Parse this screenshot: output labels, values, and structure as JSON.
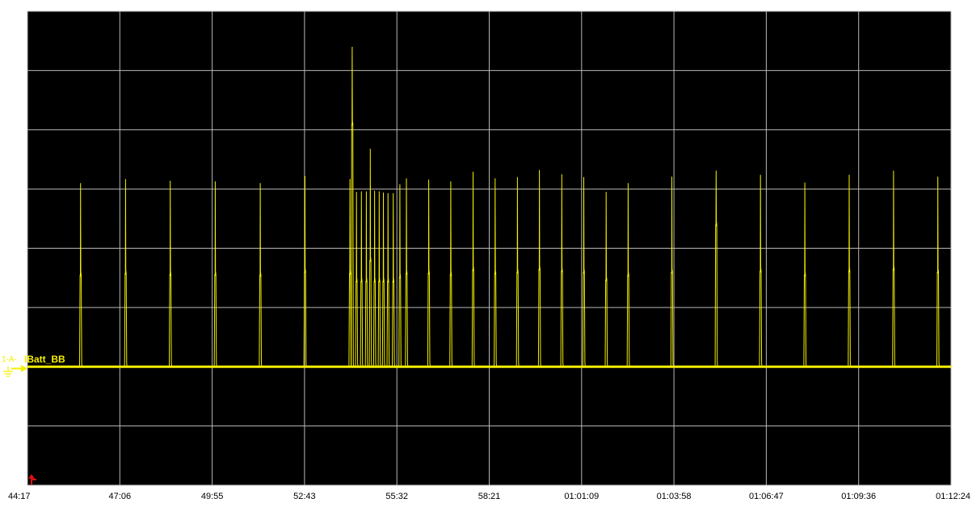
{
  "window": {
    "plot_background": "#000000",
    "grid_color": "#b8b8b8",
    "trace_color": "#f5f000",
    "marker_color": "#e01010"
  },
  "channel": {
    "prefix": "1-A-",
    "name": "IBatt_BB",
    "icons": [
      "ground-marker-icon",
      "channel-arrow-icon",
      "trigger-marker-icon"
    ]
  },
  "chart_data": {
    "type": "line",
    "title": "",
    "xlabel": "",
    "ylabel": "",
    "grid": true,
    "x_tick_labels": [
      "44:17",
      "47:06",
      "49:55",
      "52:43",
      "55:32",
      "58:21",
      "01:01:09",
      "01:03:58",
      "01:06:47",
      "01:09:36",
      "01:12:24"
    ],
    "xlim_minutes": [
      44.283,
      72.4
    ],
    "y_scale": "relative to baseline; grid divisions",
    "ylim_div": [
      -2,
      6
    ],
    "series": [
      {
        "baseline_div": 0,
        "spikes": [
          {
            "t": 45.9,
            "peak_div": 3.1,
            "mid_div": 1.55
          },
          {
            "t": 47.27,
            "peak_div": 3.17,
            "mid_div": 1.58
          },
          {
            "t": 48.63,
            "peak_div": 3.14,
            "mid_div": 1.56
          },
          {
            "t": 50.0,
            "peak_div": 3.13,
            "mid_div": 1.56
          },
          {
            "t": 51.37,
            "peak_div": 3.1,
            "mid_div": 1.55
          },
          {
            "t": 52.73,
            "peak_div": 3.22,
            "mid_div": 1.61
          },
          {
            "t": 54.1,
            "peak_div": 3.17,
            "mid_div": 1.58
          },
          {
            "t": 54.17,
            "peak_div": 5.4,
            "mid_div": 4.1
          },
          {
            "t": 54.3,
            "peak_div": 2.95,
            "mid_div": 1.45
          },
          {
            "t": 54.45,
            "peak_div": 2.96,
            "mid_div": 1.45
          },
          {
            "t": 54.6,
            "peak_div": 2.96,
            "mid_div": 1.45
          },
          {
            "t": 54.72,
            "peak_div": 3.68,
            "mid_div": 1.8
          },
          {
            "t": 54.85,
            "peak_div": 2.97,
            "mid_div": 1.45
          },
          {
            "t": 54.99,
            "peak_div": 2.96,
            "mid_div": 1.45
          },
          {
            "t": 55.12,
            "peak_div": 2.94,
            "mid_div": 1.45
          },
          {
            "t": 55.26,
            "peak_div": 2.93,
            "mid_div": 1.45
          },
          {
            "t": 55.42,
            "peak_div": 2.93,
            "mid_div": 1.45
          },
          {
            "t": 55.62,
            "peak_div": 3.08,
            "mid_div": 1.52
          },
          {
            "t": 55.82,
            "peak_div": 3.18,
            "mid_div": 1.58
          },
          {
            "t": 56.5,
            "peak_div": 3.16,
            "mid_div": 1.58
          },
          {
            "t": 57.17,
            "peak_div": 3.13,
            "mid_div": 1.56
          },
          {
            "t": 57.85,
            "peak_div": 3.29,
            "mid_div": 1.64
          },
          {
            "t": 58.52,
            "peak_div": 3.18,
            "mid_div": 1.58
          },
          {
            "t": 59.2,
            "peak_div": 3.2,
            "mid_div": 1.6
          },
          {
            "t": 59.87,
            "peak_div": 3.32,
            "mid_div": 1.65
          },
          {
            "t": 60.55,
            "peak_div": 3.25,
            "mid_div": 1.62
          },
          {
            "t": 61.22,
            "peak_div": 3.2,
            "mid_div": 1.6
          },
          {
            "t": 61.9,
            "peak_div": 2.95,
            "mid_div": 1.47
          },
          {
            "t": 62.57,
            "peak_div": 3.1,
            "mid_div": 1.55
          },
          {
            "t": 63.9,
            "peak_div": 3.21,
            "mid_div": 1.6
          },
          {
            "t": 65.25,
            "peak_div": 3.31,
            "mid_div": 2.4
          },
          {
            "t": 66.6,
            "peak_div": 3.24,
            "mid_div": 1.62
          },
          {
            "t": 67.95,
            "peak_div": 3.11,
            "mid_div": 1.55
          },
          {
            "t": 69.3,
            "peak_div": 3.24,
            "mid_div": 1.62
          },
          {
            "t": 70.65,
            "peak_div": 3.31,
            "mid_div": 1.65
          },
          {
            "t": 72.0,
            "peak_div": 3.21,
            "mid_div": 1.6
          }
        ]
      }
    ]
  }
}
